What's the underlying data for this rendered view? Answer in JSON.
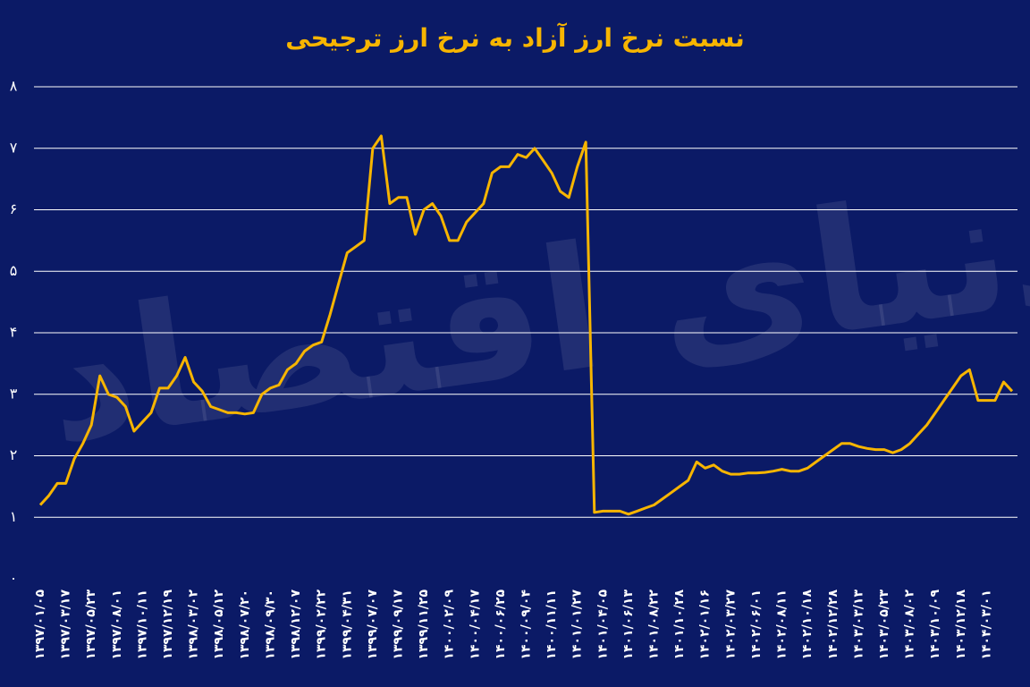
{
  "chart_data": {
    "type": "line",
    "title": "نسبت نرخ ارز آزاد به نرخ ارز ترجیحی",
    "watermark": "دنیای اقتصاد",
    "categories": [
      "۱۳۹۷/۰۱/۰۵",
      null,
      null,
      "۱۳۹۷/۰۳/۱۷",
      null,
      null,
      "۱۳۹۷/۰۵/۲۳",
      null,
      null,
      "۱۳۹۷/۰۸/۰۱",
      null,
      null,
      "۱۳۹۷/۱۰/۱۱",
      null,
      null,
      "۱۳۹۷/۱۲/۱۹",
      null,
      null,
      "۱۳۹۸/۰۳/۰۲",
      null,
      null,
      "۱۳۹۸/۰۵/۱۲",
      null,
      null,
      "۱۳۹۸/۰۷/۲۰",
      null,
      null,
      "۱۳۹۸/۰۹/۳۰",
      null,
      null,
      "۱۳۹۸/۱۲/۰۷",
      null,
      null,
      "۱۳۹۹/۰۲/۲۲",
      null,
      null,
      "۱۳۹۹/۰۴/۳۱",
      null,
      null,
      "۱۳۹۹/۰۷/۰۷",
      null,
      null,
      "۱۳۹۹/۰۹/۱۷",
      null,
      null,
      "۱۳۹۹/۱۱/۲۵",
      null,
      null,
      "۱۴۰۰/۰۲/۰۹",
      null,
      null,
      "۱۴۰۰/۰۴/۱۷",
      null,
      null,
      "۱۴۰۰/۰۶/۲۵",
      null,
      null,
      "۱۴۰۰/۰۹/۰۴",
      null,
      null,
      "۱۴۰۰/۱۱/۱۱",
      null,
      null,
      "۱۴۰۱/۰۱/۲۷",
      null,
      null,
      "۱۴۰۱/۰۴/۰۵",
      null,
      null,
      "۱۴۰۱/۰۶/۱۳",
      null,
      null,
      "۱۴۰۱/۰۸/۲۲",
      null,
      null,
      "۱۴۰۱/۱۰/۲۸",
      null,
      null,
      "۱۴۰۲/۰۱/۱۶",
      null,
      null,
      "۱۴۰۲/۰۳/۲۷",
      null,
      null,
      "۱۴۰۲/۰۶/۰۱",
      null,
      null,
      "۱۴۰۲/۰۸/۱۱",
      null,
      null,
      "۱۴۰۲/۱۰/۱۸",
      null,
      null,
      "۱۴۰۲/۱۲/۲۸",
      null,
      null,
      "۱۴۰۳/۰۳/۱۳",
      null,
      null,
      "۱۴۰۳/۰۵/۲۳",
      null,
      null,
      "۱۴۰۳/۰۸/۰۲",
      null,
      null,
      "۱۴۰۳/۱۰/۰۹",
      null,
      null,
      "۱۴۰۳/۱۲/۱۸",
      null,
      null,
      "۱۴۰۴/۰۳/۰۱",
      null,
      null,
      null
    ],
    "values": [
      1.2,
      1.35,
      1.55,
      1.55,
      1.95,
      2.2,
      2.5,
      3.3,
      3.0,
      2.95,
      2.8,
      2.4,
      2.55,
      2.7,
      3.1,
      3.1,
      3.3,
      3.6,
      3.2,
      3.05,
      2.8,
      2.75,
      2.7,
      2.7,
      2.68,
      2.7,
      3.0,
      3.1,
      3.15,
      3.4,
      3.5,
      3.7,
      3.8,
      3.85,
      4.3,
      4.8,
      5.3,
      5.4,
      5.5,
      7.0,
      7.2,
      6.1,
      6.2,
      6.2,
      5.6,
      6.0,
      6.1,
      5.9,
      5.5,
      5.5,
      5.8,
      5.95,
      6.1,
      6.6,
      6.7,
      6.7,
      6.9,
      6.85,
      7.0,
      6.8,
      6.6,
      6.3,
      6.2,
      6.7,
      7.1,
      1.08,
      1.1,
      1.1,
      1.1,
      1.05,
      1.1,
      1.15,
      1.2,
      1.3,
      1.4,
      1.5,
      1.6,
      1.9,
      1.8,
      1.85,
      1.75,
      1.7,
      1.7,
      1.72,
      1.72,
      1.73,
      1.75,
      1.78,
      1.75,
      1.75,
      1.8,
      1.9,
      2.0,
      2.1,
      2.2,
      2.2,
      2.15,
      2.12,
      2.1,
      2.1,
      2.05,
      2.1,
      2.2,
      2.35,
      2.5,
      2.7,
      2.9,
      3.1,
      3.3,
      3.4,
      2.9,
      2.9,
      2.9,
      3.2,
      3.05
    ],
    "color": "#f7b500",
    "ylim": [
      0,
      8
    ],
    "yticks": [
      {
        "value": 0,
        "label": "۰"
      },
      {
        "value": 1,
        "label": "۱"
      },
      {
        "value": 2,
        "label": "۲"
      },
      {
        "value": 3,
        "label": "۳"
      },
      {
        "value": 4,
        "label": "۴"
      },
      {
        "value": 5,
        "label": "۵"
      },
      {
        "value": 6,
        "label": "۶"
      },
      {
        "value": 7,
        "label": "۷"
      },
      {
        "value": 8,
        "label": "۸"
      }
    ],
    "grid": true
  }
}
